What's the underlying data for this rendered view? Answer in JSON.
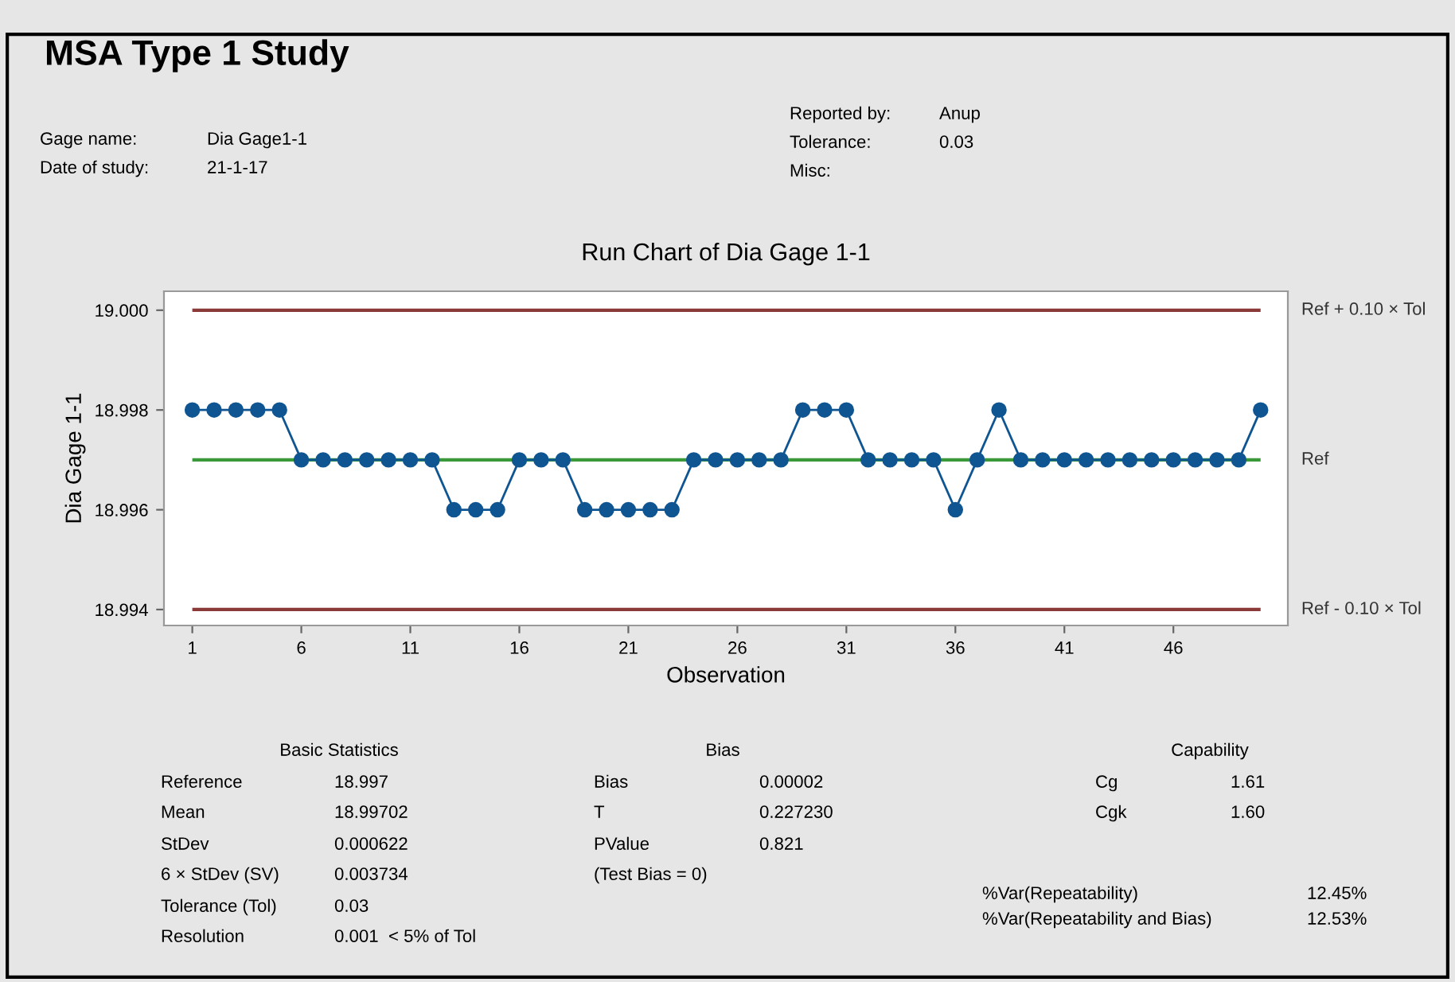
{
  "chart_data": {
    "type": "line",
    "title": "Run Chart of Dia Gage 1-1",
    "xlabel": "Observation",
    "ylabel": "Dia Gage 1-1",
    "x": [
      1,
      2,
      3,
      4,
      5,
      6,
      7,
      8,
      9,
      10,
      11,
      12,
      13,
      14,
      15,
      16,
      17,
      18,
      19,
      20,
      21,
      22,
      23,
      24,
      25,
      26,
      27,
      28,
      29,
      30,
      31,
      32,
      33,
      34,
      35,
      36,
      37,
      38,
      39,
      40,
      41,
      42,
      43,
      44,
      45,
      46,
      47,
      48,
      49,
      50
    ],
    "series": [
      {
        "color": "#0f5592",
        "values": [
          18.998,
          18.998,
          18.998,
          18.998,
          18.998,
          18.997,
          18.997,
          18.997,
          18.997,
          18.997,
          18.997,
          18.997,
          18.996,
          18.996,
          18.996,
          18.997,
          18.997,
          18.997,
          18.996,
          18.996,
          18.996,
          18.996,
          18.996,
          18.997,
          18.997,
          18.997,
          18.997,
          18.997,
          18.998,
          18.998,
          18.998,
          18.997,
          18.997,
          18.997,
          18.997,
          18.996,
          18.997,
          18.998,
          18.997,
          18.997,
          18.997,
          18.997,
          18.997,
          18.997,
          18.997,
          18.997,
          18.997,
          18.997,
          18.997,
          18.998
        ]
      }
    ],
    "xlim": [
      -0.3,
      51.25
    ],
    "xticks": [
      1,
      6,
      11,
      16,
      21,
      26,
      31,
      36,
      41,
      46
    ],
    "ylim": [
      18.99368,
      19.00038
    ],
    "yticks": [
      {
        "value": 18.994,
        "label": "18.994"
      },
      {
        "value": 18.996,
        "label": "18.996"
      },
      {
        "value": 18.998,
        "label": "18.998"
      },
      {
        "value": 19.0,
        "label": "19.000"
      }
    ],
    "ref_lines": [
      {
        "axis": "y",
        "value": 19.0,
        "label": "Ref + 0.10 × Tol",
        "color": "#8b3a3a"
      },
      {
        "axis": "y",
        "value": 18.997,
        "label": "Ref",
        "color": "#3a9a3a"
      },
      {
        "axis": "y",
        "value": 18.994,
        "label": "Ref - 0.10 × Tol",
        "color": "#8b3a3a"
      }
    ],
    "marker": "circle",
    "line_style": "solid",
    "grid": false,
    "legend": false,
    "annotations": [
      "MSA Type 1 Study",
      "Gage name:",
      "Dia Gage1-1",
      "Date of study:",
      "21-1-17",
      "Reported by:",
      "Anup",
      "Tolerance:",
      "0.03",
      "Misc:",
      "Basic Statistics",
      "Reference",
      "18.997",
      "Mean",
      "18.99702",
      "StDev",
      "0.000622",
      "6 × StDev (SV)",
      "0.003734",
      "Tolerance (Tol)",
      "0.03",
      "Resolution",
      "0.001  < 5% of Tol",
      "Bias",
      "Bias",
      "0.00002",
      "T",
      "0.227230",
      "PValue",
      "0.821",
      "(Test Bias = 0)",
      "Capability",
      "Cg",
      "1.61",
      "Cgk",
      "1.60",
      "%Var(Repeatability)",
      "12.45%",
      "%Var(Repeatability and Bias)",
      "12.53%"
    ]
  }
}
